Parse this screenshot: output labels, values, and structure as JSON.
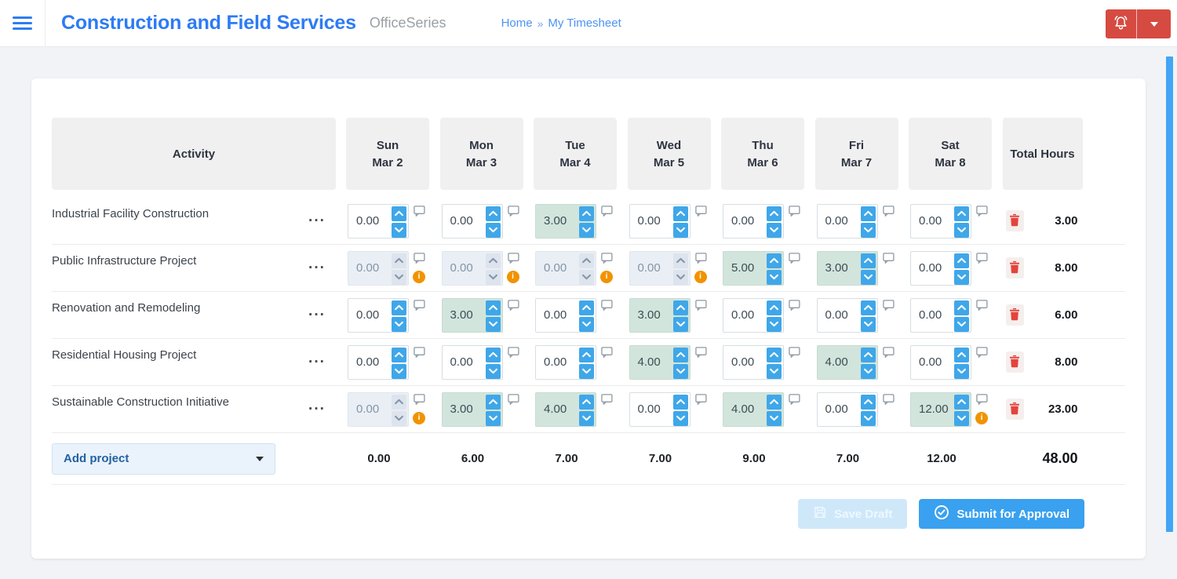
{
  "header": {
    "title": "Construction and Field Services",
    "product": "OfficeSeries",
    "breadcrumb": {
      "home": "Home",
      "separator": "»",
      "current": "My Timesheet"
    }
  },
  "icons": {
    "hamburger": "menu",
    "bell": "notifications",
    "caret_down": "dropdown",
    "row_menu_glyph": "···",
    "comment": "comment-bubble",
    "info_glyph": "i",
    "trash": "delete",
    "save": "floppy-disk",
    "check": "check-circle"
  },
  "timesheet": {
    "columns": {
      "activity": "Activity",
      "total": "Total Hours"
    },
    "days": [
      {
        "name": "Sun",
        "date": "Mar 2"
      },
      {
        "name": "Mon",
        "date": "Mar 3"
      },
      {
        "name": "Tue",
        "date": "Mar 4"
      },
      {
        "name": "Wed",
        "date": "Mar 5"
      },
      {
        "name": "Thu",
        "date": "Mar 6"
      },
      {
        "name": "Fri",
        "date": "Mar 7"
      },
      {
        "name": "Sat",
        "date": "Mar 8"
      }
    ],
    "rows": [
      {
        "activity": "Industrial Facility Construction",
        "cells": [
          {
            "value": "0.00",
            "state": "normal",
            "warning": false
          },
          {
            "value": "0.00",
            "state": "normal",
            "warning": false
          },
          {
            "value": "3.00",
            "state": "filled",
            "warning": false
          },
          {
            "value": "0.00",
            "state": "normal",
            "warning": false
          },
          {
            "value": "0.00",
            "state": "normal",
            "warning": false
          },
          {
            "value": "0.00",
            "state": "normal",
            "warning": false
          },
          {
            "value": "0.00",
            "state": "normal",
            "warning": false
          }
        ],
        "total": "3.00"
      },
      {
        "activity": "Public Infrastructure Project",
        "cells": [
          {
            "value": "0.00",
            "state": "disabled",
            "warning": true
          },
          {
            "value": "0.00",
            "state": "disabled",
            "warning": true
          },
          {
            "value": "0.00",
            "state": "disabled",
            "warning": true
          },
          {
            "value": "0.00",
            "state": "disabled",
            "warning": true
          },
          {
            "value": "5.00",
            "state": "filled",
            "warning": false
          },
          {
            "value": "3.00",
            "state": "filled",
            "warning": false
          },
          {
            "value": "0.00",
            "state": "normal",
            "warning": false
          }
        ],
        "total": "8.00"
      },
      {
        "activity": "Renovation and Remodeling",
        "cells": [
          {
            "value": "0.00",
            "state": "normal",
            "warning": false
          },
          {
            "value": "3.00",
            "state": "filled",
            "warning": false
          },
          {
            "value": "0.00",
            "state": "normal",
            "warning": false
          },
          {
            "value": "3.00",
            "state": "filled",
            "warning": false
          },
          {
            "value": "0.00",
            "state": "normal",
            "warning": false
          },
          {
            "value": "0.00",
            "state": "normal",
            "warning": false
          },
          {
            "value": "0.00",
            "state": "normal",
            "warning": false
          }
        ],
        "total": "6.00"
      },
      {
        "activity": "Residential Housing Project",
        "cells": [
          {
            "value": "0.00",
            "state": "normal",
            "warning": false
          },
          {
            "value": "0.00",
            "state": "normal",
            "warning": false
          },
          {
            "value": "0.00",
            "state": "normal",
            "warning": false
          },
          {
            "value": "4.00",
            "state": "filled",
            "warning": false
          },
          {
            "value": "0.00",
            "state": "normal",
            "warning": false
          },
          {
            "value": "4.00",
            "state": "filled",
            "warning": false
          },
          {
            "value": "0.00",
            "state": "normal",
            "warning": false
          }
        ],
        "total": "8.00"
      },
      {
        "activity": "Sustainable Construction Initiative",
        "cells": [
          {
            "value": "0.00",
            "state": "disabled",
            "warning": true
          },
          {
            "value": "3.00",
            "state": "filled",
            "warning": false
          },
          {
            "value": "4.00",
            "state": "filled",
            "warning": false
          },
          {
            "value": "0.00",
            "state": "normal",
            "warning": false
          },
          {
            "value": "4.00",
            "state": "filled",
            "warning": false
          },
          {
            "value": "0.00",
            "state": "normal",
            "warning": false
          },
          {
            "value": "12.00",
            "state": "filled",
            "warning": true
          }
        ],
        "total": "23.00"
      }
    ],
    "footer": {
      "add_project": "Add project",
      "day_totals": [
        "0.00",
        "6.00",
        "7.00",
        "7.00",
        "9.00",
        "7.00",
        "12.00"
      ],
      "week_total": "48.00"
    },
    "actions": {
      "save_draft": "Save Draft",
      "submit": "Submit for Approval"
    }
  },
  "colors": {
    "brand_blue": "#2d7bf4",
    "breadcrumb_blue": "#4b93f6",
    "topbar_red": "#d64b41",
    "spinner_blue": "#3fa7e9",
    "filled_cell_green": "#d2e5dc",
    "disabled_cell_gray": "#eaeff5",
    "warning_orange": "#f19300",
    "danger_red": "#e5433d",
    "submit_blue": "#39a1ef",
    "save_draft_disabled_blue": "#cfe8f9",
    "scrollbar_blue": "#42a5f5",
    "header_cell_gray": "#f0f0f0"
  }
}
